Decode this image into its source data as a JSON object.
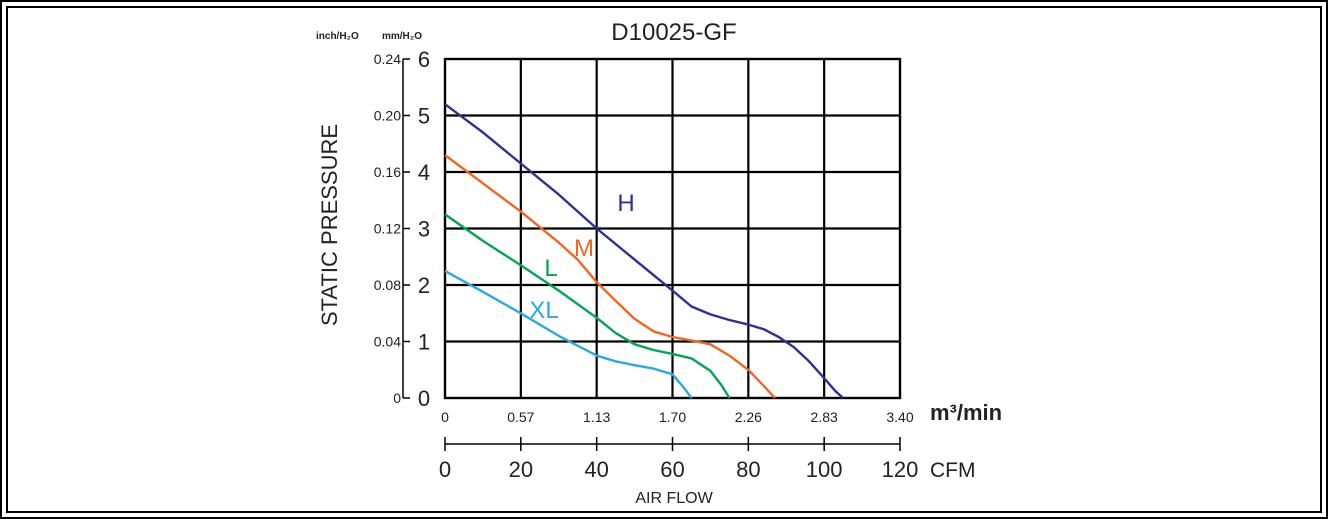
{
  "chart_data": {
    "type": "line",
    "title": "D10025-GF",
    "ylabel": "STATIC PRESSURE",
    "xlabel": "AIR FLOW",
    "y_unit_inch": "inch/H₂O",
    "y_unit_mm": "mm/H₂O",
    "x_unit_m3": "m³/min",
    "x_unit_cfm": "CFM",
    "xlim_cfm": [
      0,
      120
    ],
    "ylim_mm": [
      0,
      6
    ],
    "grid": true,
    "colors": {
      "H": "#2e3192",
      "M": "#f26522",
      "L": "#00a651",
      "XL": "#29aae2"
    },
    "y_ticks_mm": [
      "0",
      "1",
      "2",
      "3",
      "4",
      "5",
      "6"
    ],
    "y_ticks_inch": [
      "0",
      "0.04",
      "0.08",
      "0.12",
      "0.16",
      "0.20",
      "0.24"
    ],
    "x_ticks_cfm": [
      "0",
      "20",
      "40",
      "60",
      "80",
      "100",
      "120"
    ],
    "x_ticks_m3": [
      "0",
      "0.57",
      "1.13",
      "1.70",
      "2.26",
      "2.83",
      "3.40"
    ],
    "series": [
      {
        "name": "H",
        "label": "H",
        "color": "#2e3192",
        "points": [
          [
            0,
            5.2
          ],
          [
            10,
            4.7
          ],
          [
            20,
            4.15
          ],
          [
            30,
            3.6
          ],
          [
            40,
            3.0
          ],
          [
            50,
            2.45
          ],
          [
            60,
            1.9
          ],
          [
            65,
            1.62
          ],
          [
            70,
            1.48
          ],
          [
            75,
            1.38
          ],
          [
            80,
            1.3
          ],
          [
            84,
            1.22
          ],
          [
            88,
            1.08
          ],
          [
            92,
            0.9
          ],
          [
            96,
            0.65
          ],
          [
            100,
            0.35
          ],
          [
            103,
            0.12
          ],
          [
            105,
            0
          ]
        ]
      },
      {
        "name": "M",
        "label": "M",
        "color": "#f26522",
        "points": [
          [
            0,
            4.3
          ],
          [
            10,
            3.8
          ],
          [
            20,
            3.3
          ],
          [
            30,
            2.75
          ],
          [
            35,
            2.45
          ],
          [
            40,
            2.05
          ],
          [
            45,
            1.72
          ],
          [
            50,
            1.4
          ],
          [
            55,
            1.18
          ],
          [
            60,
            1.08
          ],
          [
            65,
            1.02
          ],
          [
            70,
            0.95
          ],
          [
            75,
            0.75
          ],
          [
            80,
            0.5
          ],
          [
            84,
            0.22
          ],
          [
            87,
            0
          ]
        ]
      },
      {
        "name": "L",
        "label": "L",
        "color": "#00a651",
        "points": [
          [
            0,
            3.25
          ],
          [
            10,
            2.78
          ],
          [
            20,
            2.35
          ],
          [
            30,
            1.9
          ],
          [
            40,
            1.42
          ],
          [
            45,
            1.15
          ],
          [
            50,
            0.95
          ],
          [
            55,
            0.85
          ],
          [
            60,
            0.78
          ],
          [
            65,
            0.7
          ],
          [
            70,
            0.48
          ],
          [
            73,
            0.22
          ],
          [
            75,
            0
          ]
        ]
      },
      {
        "name": "XL",
        "label": "XL",
        "color": "#29aae2",
        "points": [
          [
            0,
            2.25
          ],
          [
            10,
            1.88
          ],
          [
            20,
            1.5
          ],
          [
            30,
            1.1
          ],
          [
            40,
            0.75
          ],
          [
            45,
            0.65
          ],
          [
            50,
            0.58
          ],
          [
            55,
            0.52
          ],
          [
            60,
            0.42
          ],
          [
            63,
            0.18
          ],
          [
            65,
            0
          ]
        ]
      }
    ]
  }
}
